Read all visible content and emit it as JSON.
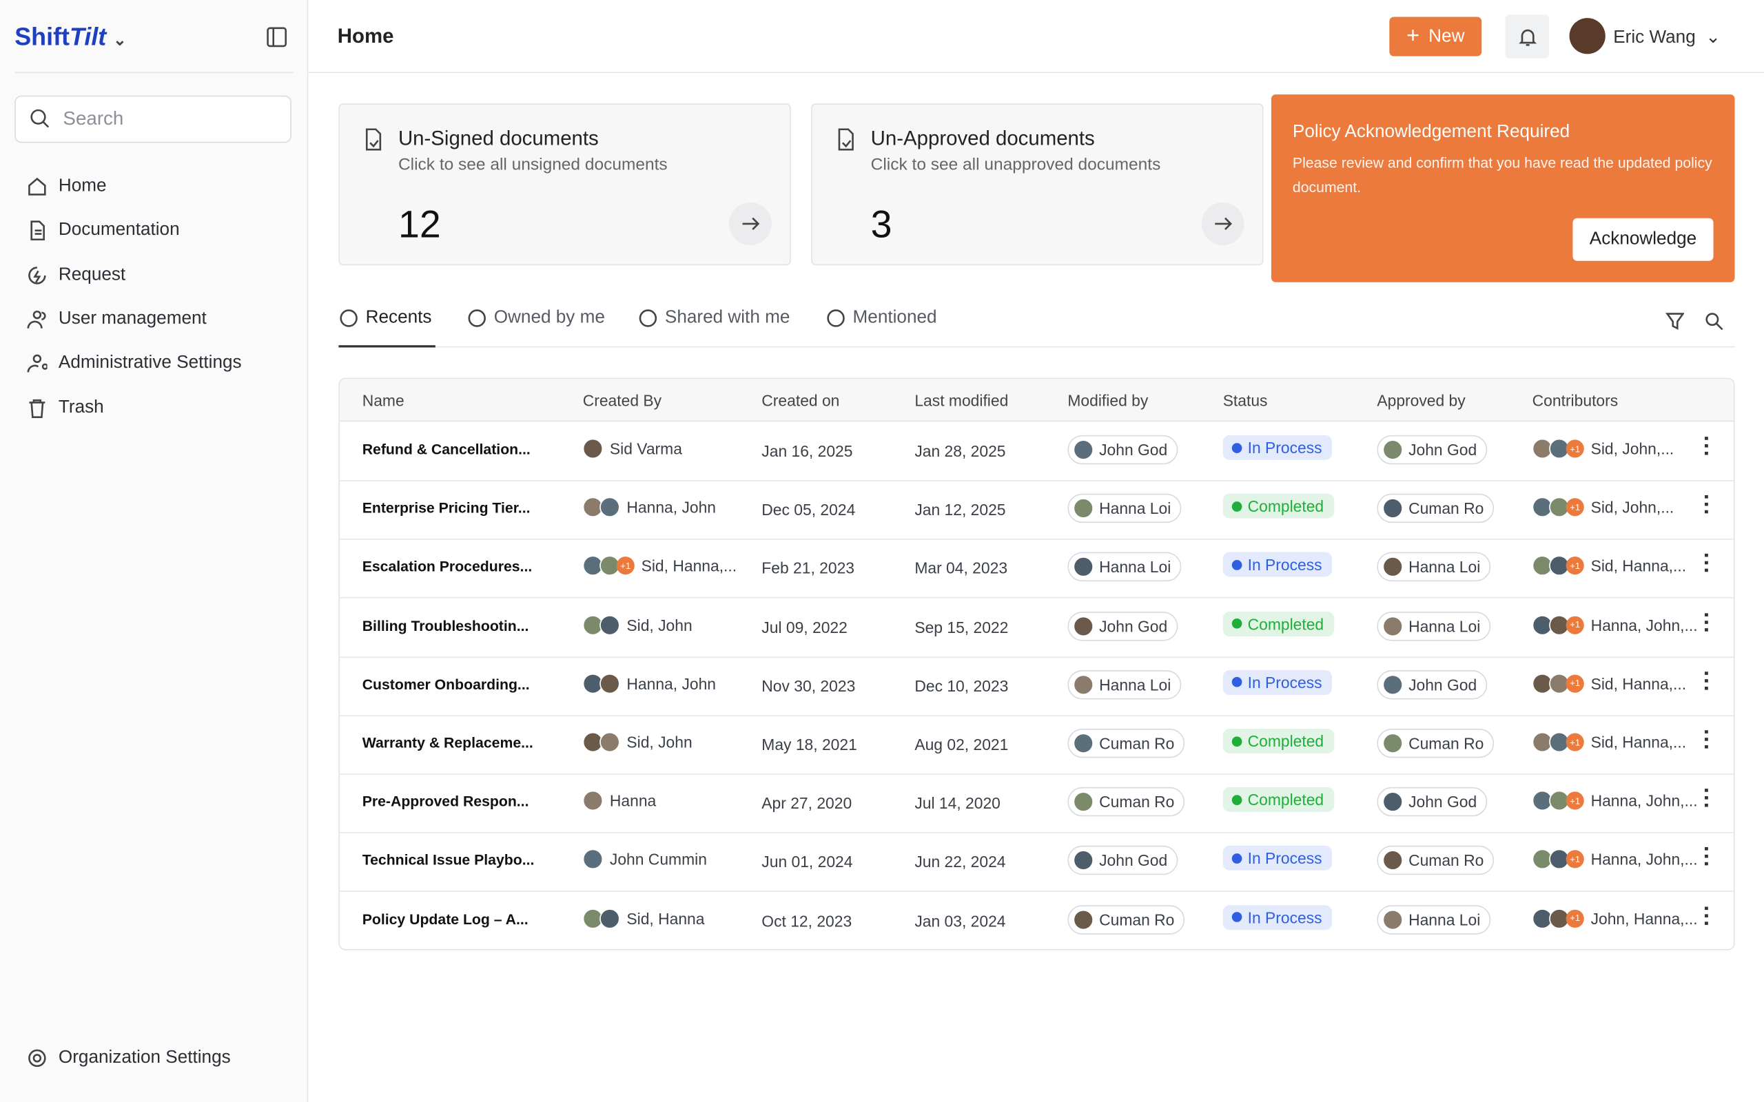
{
  "sidebar": {
    "brand_a": "Shift",
    "brand_b": "Tilt",
    "search_placeholder": "Search",
    "nav": [
      "Home",
      "Documentation",
      "Request",
      "User management",
      "Administrative Settings",
      "Trash"
    ],
    "footer": "Organization Settings"
  },
  "header": {
    "title": "Home",
    "new_button": "New",
    "user": "Eric Wang"
  },
  "cards": [
    {
      "title": "Un-Signed documents",
      "subtitle": "Click to see all unsigned documents",
      "count": "12"
    },
    {
      "title": "Un-Approved documents",
      "subtitle": "Click to see all unapproved documents",
      "count": "3"
    }
  ],
  "banner": {
    "title": "Policy Acknowledgement Required",
    "text": "Please review and confirm that you have read the updated policy document.",
    "button": "Acknowledge"
  },
  "tabs": [
    "Recents",
    "Owned by me",
    "Shared with me",
    "Mentioned"
  ],
  "table": {
    "columns": [
      "Name",
      "Created By",
      "Created on",
      "Last modified",
      "Modified by",
      "Status",
      "Approved by",
      "Contributors"
    ],
    "rows": [
      {
        "name": "Refund & Cancellation...",
        "created_by": "Sid Varma",
        "created_on": "Jan 16, 2025",
        "last_modified": "Jan 28, 2025",
        "modified_by": "John God",
        "status": "In Process",
        "status_color": "#2f5fe0",
        "approved_by": "John God",
        "contributors": "Sid, John,...",
        "contributors_extra": "+1"
      },
      {
        "name": "Enterprise Pricing Tier...",
        "created_by": "Hanna, John",
        "created_on": "Dec 05, 2024",
        "last_modified": "Jan 12, 2025",
        "modified_by": "Hanna Loi",
        "status": "Completed",
        "status_color": "#1fae3a",
        "approved_by": "Cuman Ro",
        "contributors": "Sid, John,...",
        "contributors_extra": "+1"
      },
      {
        "name": "Escalation Procedures...",
        "created_by": "Sid, Hanna,...",
        "created_by_extra": "+1",
        "created_on": "Feb 21, 2023",
        "last_modified": "Mar 04, 2023",
        "modified_by": "Hanna Loi",
        "status": "In Process",
        "status_color": "#2f5fe0",
        "approved_by": "Hanna Loi",
        "contributors": "Sid, Hanna,...",
        "contributors_extra": "+1"
      },
      {
        "name": "Billing Troubleshootin...",
        "created_by": "Sid, John",
        "created_on": "Jul 09, 2022",
        "last_modified": "Sep 15, 2022",
        "modified_by": "John God",
        "status": "Completed",
        "status_color": "#1fae3a",
        "approved_by": "Hanna Loi",
        "contributors": "Hanna, John,...",
        "contributors_extra": "+1"
      },
      {
        "name": "Customer Onboarding...",
        "created_by": "Hanna, John",
        "created_on": "Nov 30, 2023",
        "last_modified": "Dec 10, 2023",
        "modified_by": "Hanna Loi",
        "status": "In Process",
        "status_color": "#2f5fe0",
        "approved_by": "John God",
        "contributors": "Sid, Hanna,...",
        "contributors_extra": "+1"
      },
      {
        "name": "Warranty & Replaceme...",
        "created_by": "Sid, John",
        "created_on": "May 18, 2021",
        "last_modified": "Aug 02, 2021",
        "modified_by": "Cuman Ro",
        "status": "Completed",
        "status_color": "#1fae3a",
        "approved_by": "Cuman Ro",
        "contributors": "Sid, Hanna,...",
        "contributors_extra": "+1"
      },
      {
        "name": "Pre-Approved Respon...",
        "created_by": "Hanna",
        "created_on": "Apr 27, 2020",
        "last_modified": "Jul 14, 2020",
        "modified_by": "Cuman Ro",
        "status": "Completed",
        "status_color": "#1fae3a",
        "approved_by": "John God",
        "contributors": "Hanna, John,...",
        "contributors_extra": "+1"
      },
      {
        "name": "Technical Issue Playbo...",
        "created_by": "John Cummin",
        "created_on": "Jun 01, 2024",
        "last_modified": "Jun 22, 2024",
        "modified_by": "John God",
        "status": "In Process",
        "status_color": "#2f5fe0",
        "approved_by": "Cuman Ro",
        "contributors": "Hanna, John,...",
        "contributors_extra": "+1"
      },
      {
        "name": "Policy Update Log – A...",
        "created_by": "Sid, Hanna",
        "created_on": "Oct 12, 2023",
        "last_modified": "Jan 03, 2024",
        "modified_by": "Cuman Ro",
        "status": "In Process",
        "status_color": "#2f5fe0",
        "approved_by": "Hanna Loi",
        "contributors": "John, Hanna,...",
        "contributors_extra": "+1"
      }
    ]
  }
}
